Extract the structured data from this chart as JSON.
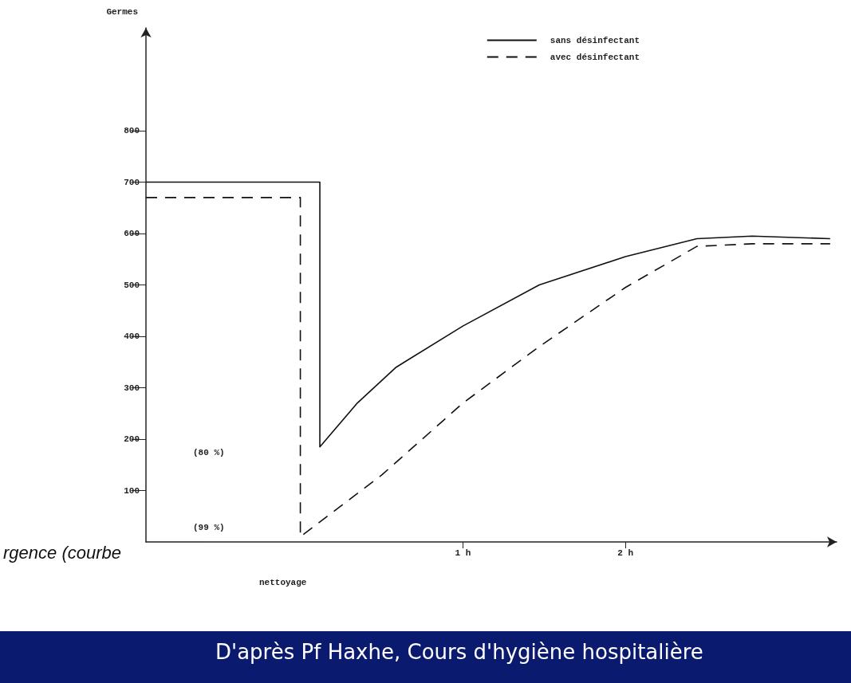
{
  "chart_data": {
    "type": "line",
    "ylabel": "Germes",
    "xlim": [
      -0.95,
      3.3
    ],
    "ylim": [
      0,
      1000
    ],
    "xticks": [
      {
        "value": 1,
        "label": "1 h"
      },
      {
        "value": 2,
        "label": "2 h"
      }
    ],
    "yticks": [
      100,
      200,
      300,
      400,
      500,
      600,
      700,
      800
    ],
    "grid": false,
    "legend": "top right",
    "marker": "none",
    "series": [
      {
        "name": "sans désinfectant",
        "color": "#111111",
        "line_style": "solid",
        "x": [
          -0.95,
          0.12,
          0.12,
          0.35,
          0.59,
          1.0,
          1.47,
          2.0,
          2.44,
          2.78,
          3.26
        ],
        "values": [
          700,
          700,
          185,
          270,
          340,
          420,
          500,
          555,
          590,
          595,
          590
        ]
      },
      {
        "name": "avec désinfectant",
        "color": "#111111",
        "line_style": "dashed",
        "x": [
          -0.95,
          0,
          0,
          0.5,
          1.0,
          1.47,
          2.0,
          2.44,
          2.78,
          3.26
        ],
        "values": [
          670,
          670,
          10,
          130,
          270,
          380,
          495,
          575,
          580,
          580
        ]
      }
    ],
    "annotations": [
      "(80 %)",
      "(99 %)",
      "nettoyage",
      "rgence (courbe",
      "D'après Pf Haxhe, Cours d'hygiène hospitalière"
    ]
  }
}
